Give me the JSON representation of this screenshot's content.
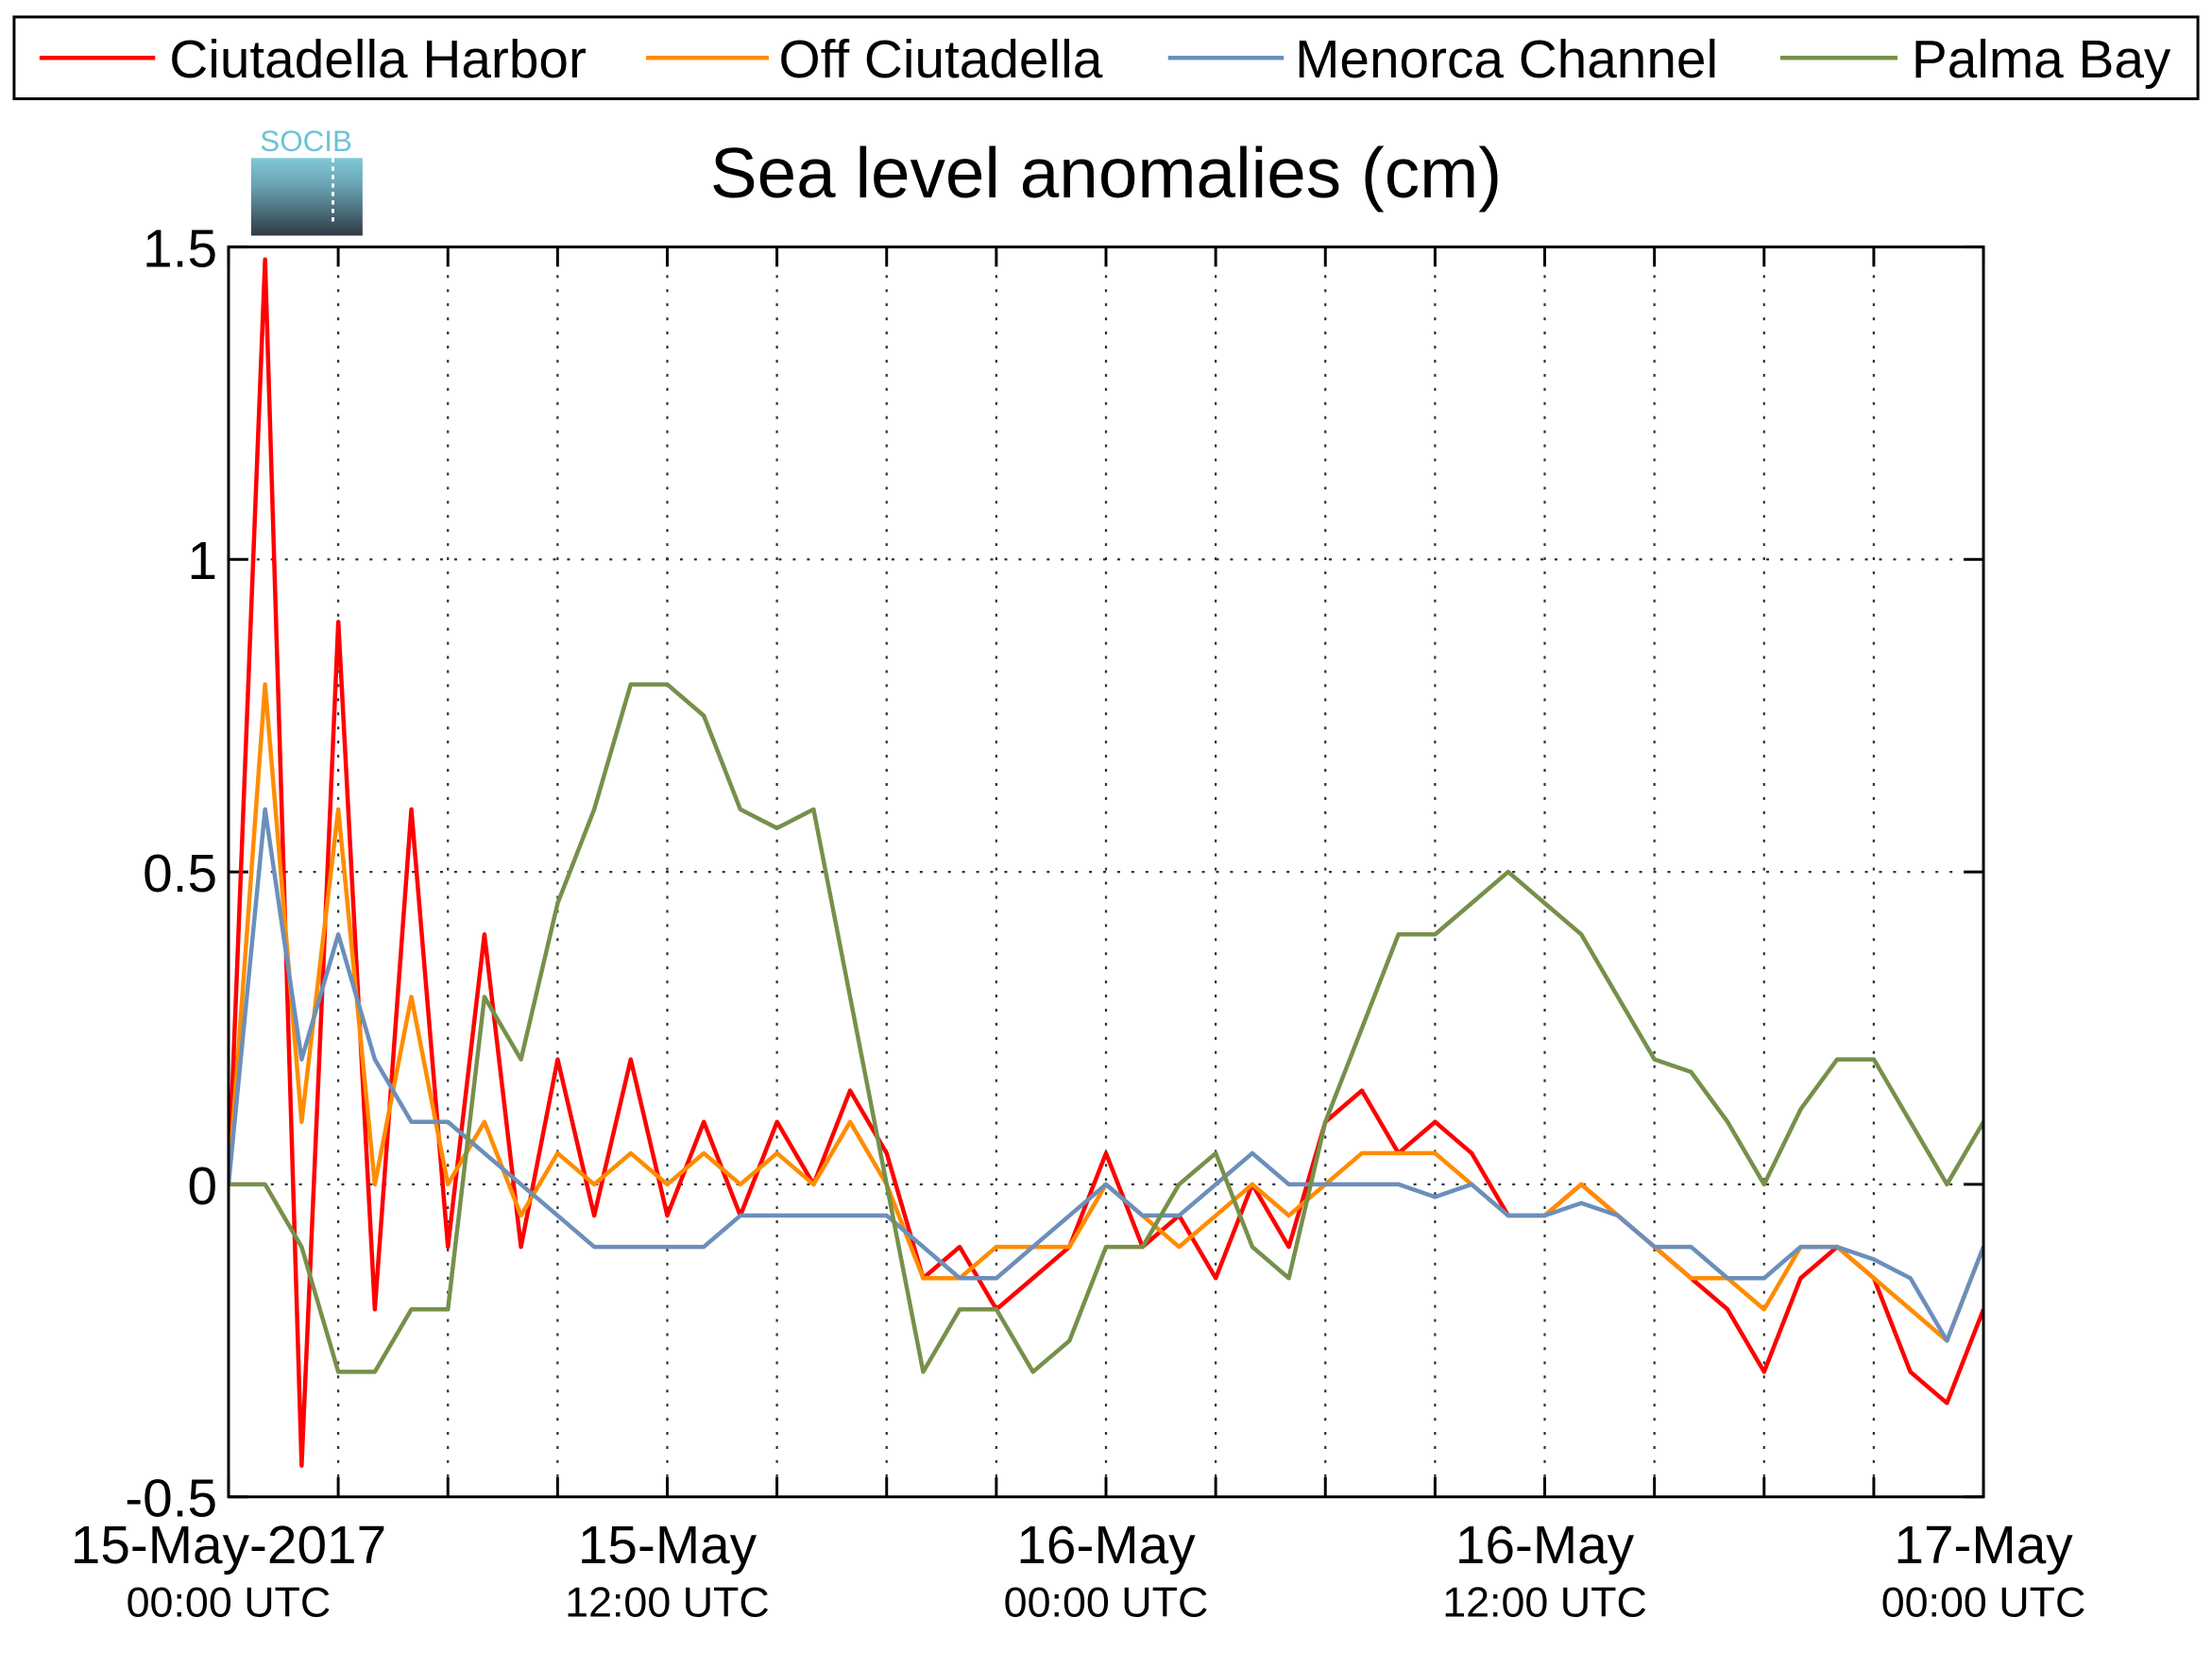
{
  "chart_data": {
    "type": "line",
    "title": "Sea level anomalies (cm)",
    "logo_text": "SOCIB",
    "x": [
      0,
      1,
      2,
      3,
      4,
      5,
      6,
      7,
      8,
      9,
      10,
      11,
      12,
      13,
      14,
      15,
      16,
      17,
      18,
      19,
      20,
      21,
      22,
      23,
      24,
      25,
      26,
      27,
      28,
      29,
      30,
      31,
      32,
      33,
      34,
      35,
      36,
      37,
      38,
      39,
      40,
      41,
      42,
      43,
      44,
      45,
      46,
      47,
      48
    ],
    "xlim": [
      0,
      48
    ],
    "xticks": [
      {
        "value": 0,
        "label": [
          "15-May-2017",
          "00:00 UTC"
        ]
      },
      {
        "value": 12,
        "label": [
          "15-May",
          "12:00 UTC"
        ]
      },
      {
        "value": 24,
        "label": [
          "16-May",
          "00:00 UTC"
        ]
      },
      {
        "value": 36,
        "label": [
          "16-May",
          "12:00 UTC"
        ]
      },
      {
        "value": 48,
        "label": [
          "17-May",
          "00:00 UTC"
        ]
      }
    ],
    "xminor_ticks": [
      3,
      6,
      9,
      15,
      18,
      21,
      27,
      30,
      33,
      39,
      42,
      45
    ],
    "ylim": [
      -0.5,
      1.5
    ],
    "yticks": [
      -0.5,
      0,
      0.5,
      1,
      1.5
    ],
    "grid": true,
    "legend": "top",
    "series": [
      {
        "name": "Ciutadella Harbor",
        "color": "#ff0000",
        "values": [
          0.0,
          1.48,
          -0.45,
          0.9,
          -0.2,
          0.6,
          -0.1,
          0.4,
          -0.1,
          0.2,
          -0.05,
          0.2,
          -0.05,
          0.1,
          -0.05,
          0.1,
          0.0,
          0.15,
          0.05,
          -0.15,
          -0.1,
          -0.2,
          -0.15,
          -0.1,
          0.05,
          -0.1,
          -0.05,
          -0.15,
          0.0,
          -0.1,
          0.1,
          0.15,
          0.05,
          0.1,
          0.05,
          -0.05,
          -0.05,
          0.0,
          -0.05,
          -0.1,
          -0.15,
          -0.2,
          -0.3,
          -0.15,
          -0.1,
          -0.15,
          -0.3,
          -0.35,
          -0.2
        ]
      },
      {
        "name": "Off Ciutadella",
        "color": "#ff8c00",
        "values": [
          0.0,
          0.8,
          0.1,
          0.6,
          0.0,
          0.3,
          0.0,
          0.1,
          -0.05,
          0.05,
          0.0,
          0.05,
          0.0,
          0.05,
          0.0,
          0.05,
          0.0,
          0.1,
          0.0,
          -0.15,
          -0.15,
          -0.1,
          -0.1,
          -0.1,
          0.0,
          -0.05,
          -0.1,
          -0.05,
          0.0,
          -0.05,
          0.0,
          0.05,
          0.05,
          0.05,
          0.0,
          -0.05,
          -0.05,
          0.0,
          -0.05,
          -0.1,
          -0.15,
          -0.15,
          -0.2,
          -0.1,
          -0.1,
          -0.15,
          -0.2,
          -0.25,
          -0.1
        ]
      },
      {
        "name": "Menorca Channel",
        "color": "#6b8fbb",
        "values": [
          0.0,
          0.6,
          0.2,
          0.4,
          0.2,
          0.1,
          0.1,
          0.05,
          0.0,
          -0.05,
          -0.1,
          -0.1,
          -0.1,
          -0.1,
          -0.05,
          -0.05,
          -0.05,
          -0.05,
          -0.05,
          -0.1,
          -0.15,
          -0.15,
          -0.1,
          -0.05,
          0.0,
          -0.05,
          -0.05,
          0.0,
          0.05,
          0.0,
          0.0,
          0.0,
          0.0,
          -0.02,
          0.0,
          -0.05,
          -0.05,
          -0.03,
          -0.05,
          -0.1,
          -0.1,
          -0.15,
          -0.15,
          -0.1,
          -0.1,
          -0.12,
          -0.15,
          -0.25,
          -0.1
        ]
      },
      {
        "name": "Palma Bay",
        "color": "#76904a",
        "values": [
          0.0,
          0.0,
          -0.1,
          -0.3,
          -0.3,
          -0.2,
          -0.2,
          0.3,
          0.2,
          0.45,
          0.6,
          0.8,
          0.8,
          0.75,
          0.6,
          0.57,
          0.6,
          0.3,
          0.0,
          -0.3,
          -0.2,
          -0.2,
          -0.3,
          -0.25,
          -0.1,
          -0.1,
          0.0,
          0.05,
          -0.1,
          -0.15,
          0.1,
          0.25,
          0.4,
          0.4,
          0.45,
          0.5,
          0.45,
          0.4,
          0.3,
          0.2,
          0.18,
          0.1,
          0.0,
          0.12,
          0.2,
          0.2,
          0.1,
          0.0,
          0.1
        ]
      }
    ]
  }
}
